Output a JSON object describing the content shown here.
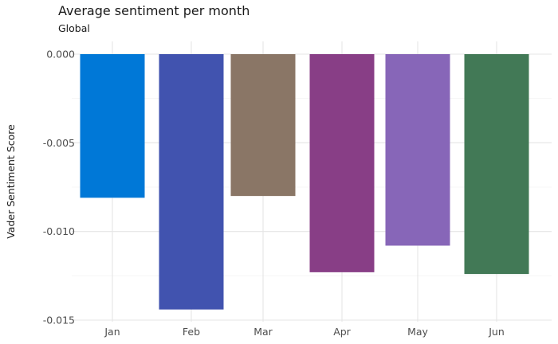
{
  "chart_data": {
    "type": "bar",
    "title": "Average sentiment per month",
    "subtitle": "Global",
    "xlabel": "",
    "ylabel": "Vader Sentiment Score",
    "categories": [
      "Jan",
      "Feb",
      "Mar",
      "Apr",
      "May",
      "Jun"
    ],
    "values": [
      -0.0081,
      -0.0144,
      -0.008,
      -0.0123,
      -0.0108,
      -0.0124
    ],
    "colors": [
      "#0078d7",
      "#4153af",
      "#8a7666",
      "#883e86",
      "#8766b8",
      "#427956"
    ],
    "ylim": [
      -0.015,
      0.0
    ],
    "yticks": [
      0.0,
      -0.005,
      -0.01,
      -0.015
    ],
    "ytick_labels": [
      "0.000",
      "-0.005",
      "-0.010",
      "-0.015"
    ],
    "grid": true,
    "legend": "none"
  }
}
